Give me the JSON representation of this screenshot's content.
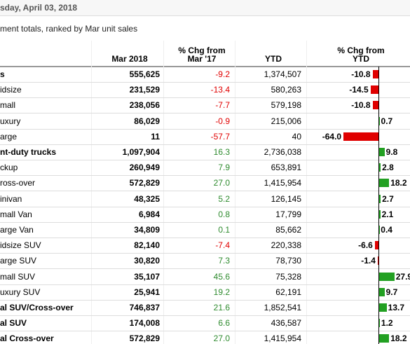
{
  "header": {
    "title": "sday, April 03, 2018",
    "subtitle": "ment totals, ranked by Mar unit sales"
  },
  "table": {
    "columns": [
      "Mar 2018",
      "% Chg from Mar '17",
      "YTD",
      "% Chg from YTD"
    ],
    "rows": [
      {
        "bold": true,
        "cells": [
          "s",
          "555,625",
          "-9.2",
          "1,374,507",
          "-10.8"
        ]
      },
      {
        "bold": false,
        "cells": [
          "idsize",
          "231,529",
          "-13.4",
          "580,263",
          "-14.5"
        ]
      },
      {
        "bold": false,
        "cells": [
          "mall",
          "238,056",
          "-7.7",
          "579,198",
          "-10.8"
        ]
      },
      {
        "bold": false,
        "cells": [
          "uxury",
          "86,029",
          "-0.9",
          "215,006",
          "0.7"
        ]
      },
      {
        "bold": false,
        "cells": [
          "arge",
          "11",
          "-57.7",
          "40",
          "-64.0"
        ]
      },
      {
        "bold": true,
        "cells": [
          "nt-duty trucks",
          "1,097,904",
          "16.3",
          "2,736,038",
          "9.8"
        ]
      },
      {
        "bold": false,
        "cells": [
          "ckup",
          "260,949",
          "7.9",
          "653,891",
          "2.8"
        ]
      },
      {
        "bold": false,
        "cells": [
          "ross-over",
          "572,829",
          "27.0",
          "1,415,954",
          "18.2"
        ]
      },
      {
        "bold": false,
        "cells": [
          "inivan",
          "48,325",
          "5.2",
          "126,145",
          "2.7"
        ]
      },
      {
        "bold": false,
        "cells": [
          "mall Van",
          "6,984",
          "0.8",
          "17,799",
          "2.1"
        ]
      },
      {
        "bold": false,
        "cells": [
          "arge Van",
          "34,809",
          "0.1",
          "85,662",
          "0.4"
        ]
      },
      {
        "bold": false,
        "cells": [
          "idsize SUV",
          "82,140",
          "-7.4",
          "220,338",
          "-6.6"
        ]
      },
      {
        "bold": false,
        "cells": [
          "arge SUV",
          "30,820",
          "7.3",
          "78,730",
          "-1.4"
        ]
      },
      {
        "bold": false,
        "cells": [
          "mall SUV",
          "35,107",
          "45.6",
          "75,328",
          "27.9"
        ]
      },
      {
        "bold": false,
        "cells": [
          "uxury SUV",
          "25,941",
          "19.2",
          "62,191",
          "9.7"
        ]
      },
      {
        "bold": true,
        "cells": [
          "al SUV/Cross-over",
          "746,837",
          "21.6",
          "1,852,541",
          "13.7"
        ]
      },
      {
        "bold": true,
        "cells": [
          "al SUV",
          "174,008",
          "6.6",
          "436,587",
          "1.2"
        ]
      },
      {
        "bold": true,
        "cells": [
          "al Cross-over",
          "572,829",
          "27.0",
          "1,415,954",
          "18.2"
        ]
      }
    ]
  }
}
